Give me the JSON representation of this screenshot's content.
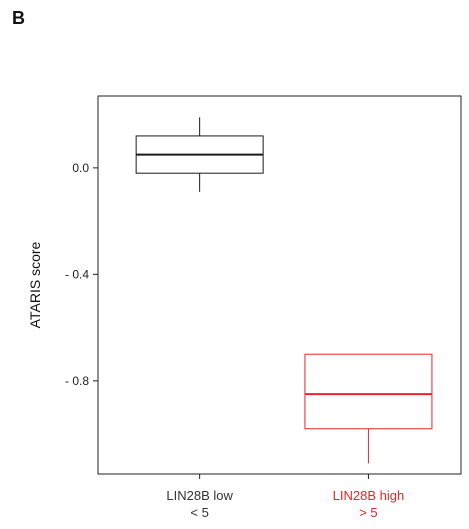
{
  "panel_label": "B",
  "colors": {
    "low": "#1a1a1a",
    "high": "#e8252a",
    "axis": "#222222"
  },
  "chart_data": {
    "type": "boxplot",
    "ylabel": "ATARIS score",
    "ylim": [
      -1.15,
      0.27
    ],
    "yticks": [
      0.0,
      -0.4,
      -0.8
    ],
    "ytick_labels": [
      "0.0",
      "- 0.4",
      "- 0.8"
    ],
    "grid": false,
    "categories": [
      {
        "label_line1": "LIN28B low",
        "label_line2": "< 5",
        "color": "#1a1a1a"
      },
      {
        "label_line1": "LIN28B high",
        "label_line2": "> 5",
        "color": "#e8252a"
      }
    ],
    "boxes": [
      {
        "whisker_low": -0.09,
        "q1": -0.02,
        "median": 0.05,
        "q3": 0.12,
        "whisker_high": 0.19
      },
      {
        "whisker_low": -1.11,
        "q1": -0.98,
        "median": -0.85,
        "q3": -0.7,
        "whisker_high": -0.7
      }
    ]
  }
}
